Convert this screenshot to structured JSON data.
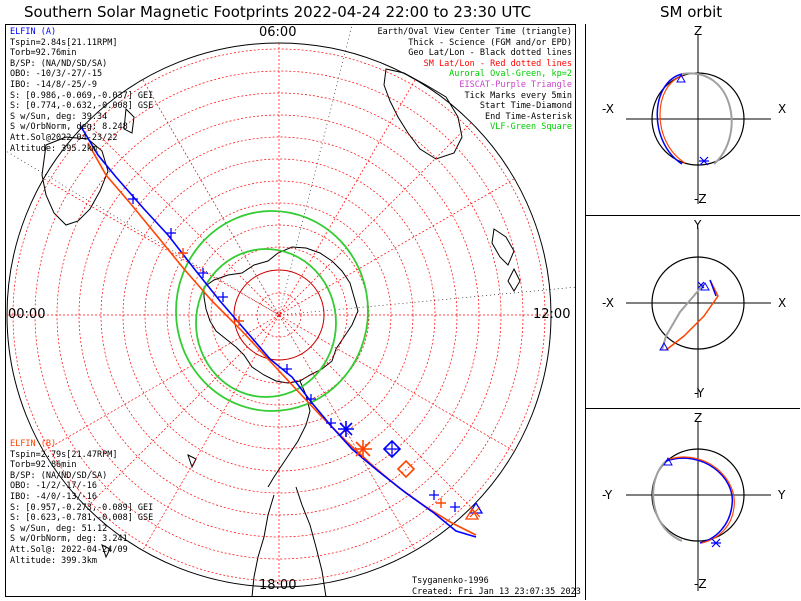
{
  "title": "Southern Solar Magnetic Footprints 2022-04-24 22:00 to 23:30 UTC",
  "orbit_title": "SM orbit",
  "mlt_labels": {
    "top": "06:00",
    "left": "00:00",
    "right": "12:00",
    "bottom": "18:00"
  },
  "elfin_a": {
    "header": "ELFIN (A)",
    "color": "#0000ff",
    "lines": [
      "Tspin=2.84s[21.11RPM]",
      "Torb=92.76min",
      "B/SP: (NA/ND/SD/SA)",
      "OBO: -10/3/-27/-15",
      "IBO: -14/8/-25/-9",
      "S: [0.986,-0.069,-0.037] GEI",
      "S: [0.774,-0.632,-0.008] GSE",
      "S w/Sun, deg: 39.34",
      "S w/OrbNorm, deg: 8.248",
      "Att.Sol@2022-04-23/22",
      "Altitude: 395.2km"
    ]
  },
  "elfin_b": {
    "header": "ELFIN (B)",
    "color": "#ff4500",
    "lines": [
      "Tspin=2.79s[21.47RPM]",
      "Torb=92.86min",
      "B/SP: (NA/ND/SD/SA)",
      "OBO: -1/2/-17/-16",
      "IBO: -4/0/-13/-16",
      "S: [0.957,-0.273,-0.089] GEI",
      "S: [0.623,-0.781,-0.008] GSE",
      "S w/Sun, deg: 51.12",
      "S w/OrbNorm, deg: 3.241",
      "Att.Sol@: 2022-04-24/09",
      "Altitude: 399.3km"
    ]
  },
  "legend": [
    {
      "text": "Earth/Oval View Center Time (triangle)",
      "color": "#000000"
    },
    {
      "text": "Thick - Science (FGM and/or EPD)",
      "color": "#000000"
    },
    {
      "text": "Geo Lat/Lon - Black dotted lines",
      "color": "#000000"
    },
    {
      "text": "SM Lat/Lon - Red dotted lines",
      "color": "#ff0000"
    },
    {
      "text": "Auroral Oval-Green, kp=2",
      "color": "#00cc00"
    },
    {
      "text": "EISCAT-Purple Triangle",
      "color": "#cc44cc"
    },
    {
      "text": "Tick Marks every 5min",
      "color": "#000000"
    },
    {
      "text": "Start Time-Diamond",
      "color": "#000000"
    },
    {
      "text": "End Time-Asterisk",
      "color": "#000000"
    },
    {
      "text": "VLF-Green Square",
      "color": "#00cc00"
    }
  ],
  "credits": {
    "model": "Tsyganenko-1996",
    "created": "Created: Fri Jan 13 23:07:35 2023"
  },
  "orbit_panels": [
    {
      "top": "Z",
      "bottom": "-Z",
      "left": "-X",
      "right": "X"
    },
    {
      "top": "Y",
      "bottom": "-Y",
      "left": "-X",
      "right": "X"
    },
    {
      "top": "Z",
      "bottom": "-Z",
      "left": "-Y",
      "right": "Y"
    }
  ],
  "colors": {
    "elfin_a": "#0000ff",
    "elfin_b": "#ff4500",
    "sm_grid": "#ff0000",
    "oval": "#33cc33",
    "orbit_gray": "#a0a0a0"
  }
}
